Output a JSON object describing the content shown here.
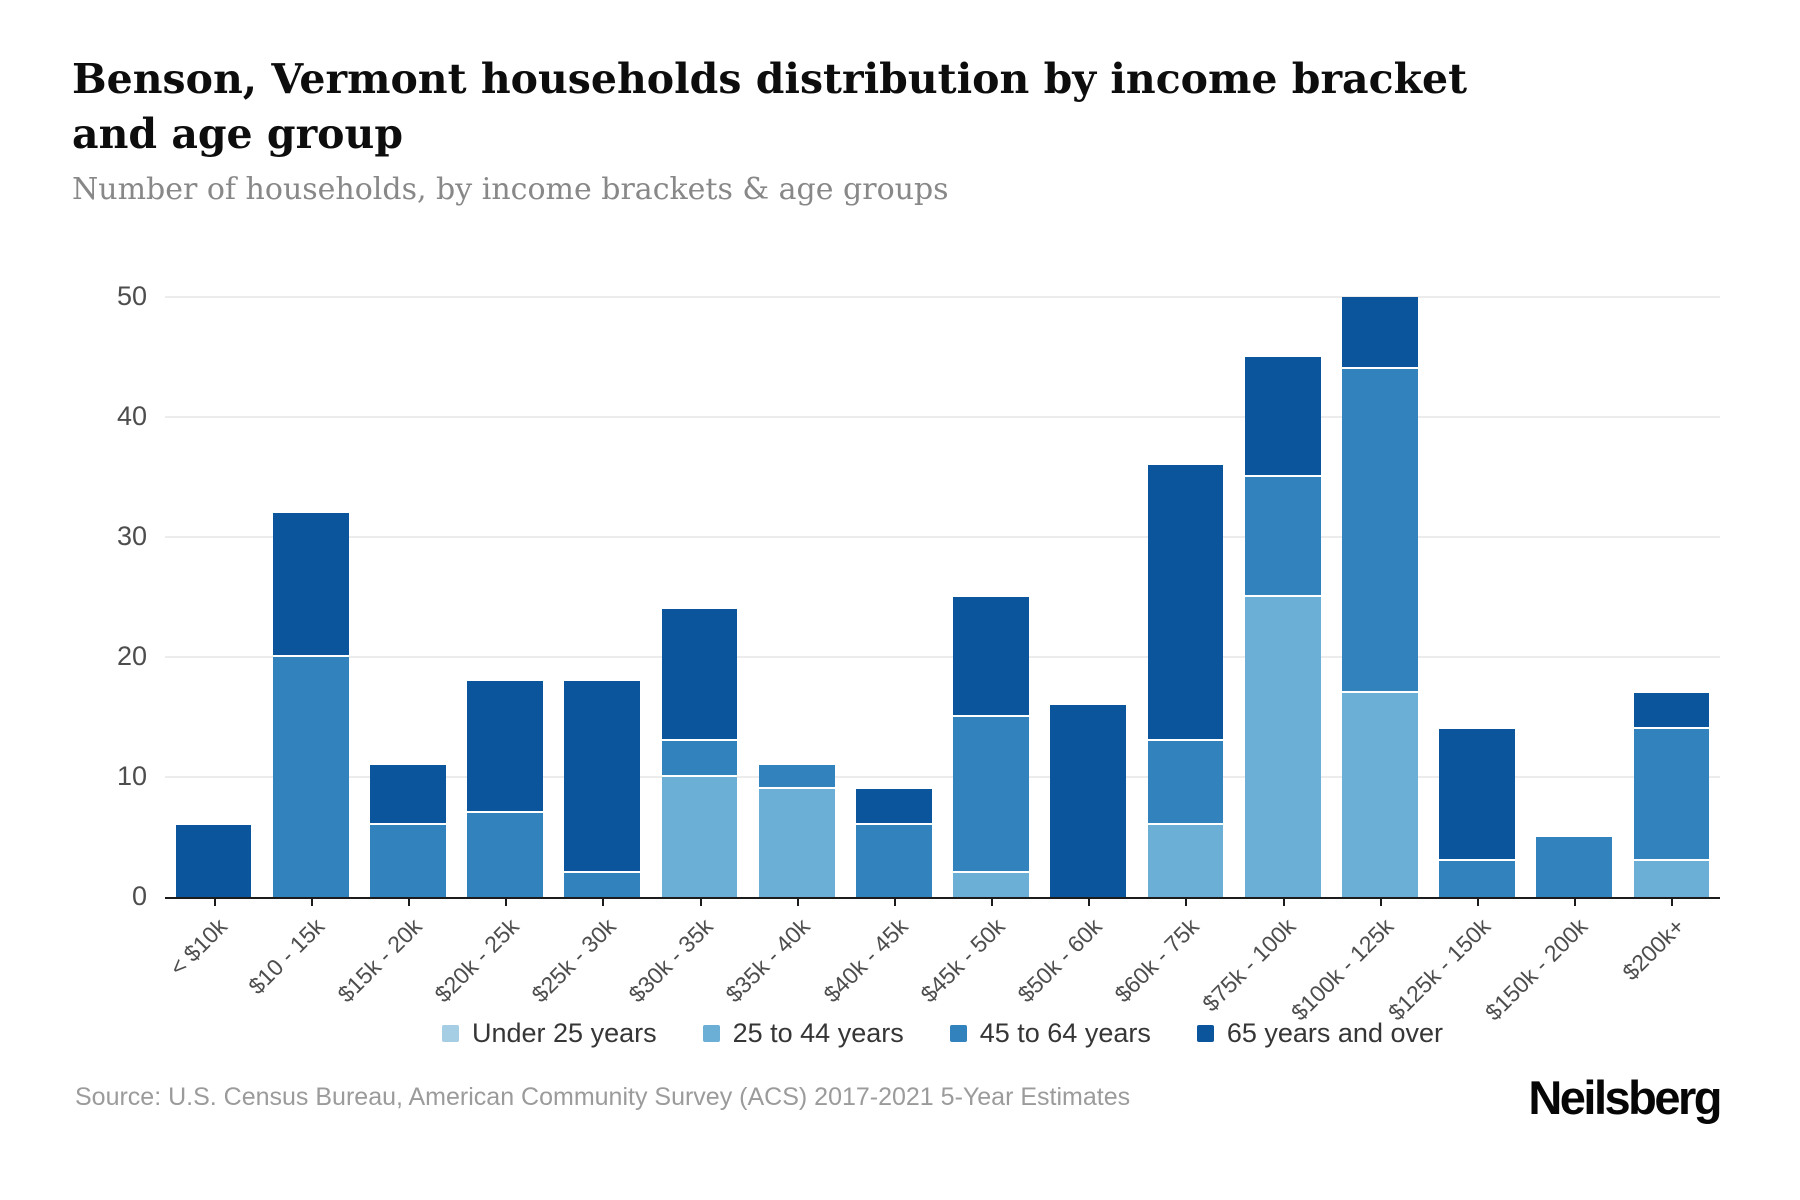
{
  "header": {
    "title": "Benson, Vermont households distribution by income bracket and age group",
    "subtitle": "Number of households, by income brackets & age groups"
  },
  "chart_data": {
    "type": "bar",
    "stacked": true,
    "title": "Benson, Vermont households distribution by income bracket and age group",
    "xlabel": "",
    "ylabel": "Number of households",
    "categories": [
      "< $10k",
      "$10 - 15k",
      "$15k - 20k",
      "$20k - 25k",
      "$25k - 30k",
      "$30k - 35k",
      "$35k - 40k",
      "$40k - 45k",
      "$45k - 50k",
      "$50k - 60k",
      "$60k - 75k",
      "$75k - 100k",
      "$100k - 125k",
      "$125k - 150k",
      "$150k - 200k",
      "$200k+"
    ],
    "series": [
      {
        "name": "Under 25 years",
        "color": "#a5cde3",
        "values": [
          0,
          0,
          0,
          0,
          0,
          0,
          0,
          0,
          0,
          0,
          0,
          0,
          0,
          0,
          0,
          0
        ]
      },
      {
        "name": "25 to 44 years",
        "color": "#6baed6",
        "values": [
          0,
          0,
          0,
          0,
          0,
          10,
          9,
          0,
          2,
          0,
          6,
          25,
          17,
          0,
          0,
          3
        ]
      },
      {
        "name": "45 to 64 years",
        "color": "#3182bd",
        "values": [
          0,
          20,
          6,
          7,
          2,
          3,
          2,
          6,
          13,
          0,
          7,
          10,
          27,
          3,
          5,
          11
        ]
      },
      {
        "name": "65 years and over",
        "color": "#0b559c",
        "values": [
          6,
          12,
          5,
          11,
          16,
          11,
          0,
          3,
          10,
          16,
          23,
          10,
          6,
          11,
          0,
          3
        ]
      }
    ],
    "totals": [
      6,
      32,
      11,
      18,
      18,
      24,
      11,
      9,
      25,
      16,
      36,
      45,
      50,
      14,
      5,
      17
    ],
    "ylim": [
      0,
      50
    ],
    "yticks": [
      0,
      10,
      20,
      30,
      40,
      50
    ],
    "grid": "horizontal",
    "legend_position": "bottom"
  },
  "footer": {
    "source": "Source: U.S. Census Bureau, American Community Survey (ACS) 2017-2021 5-Year Estimates",
    "brand": "Neilsberg"
  }
}
